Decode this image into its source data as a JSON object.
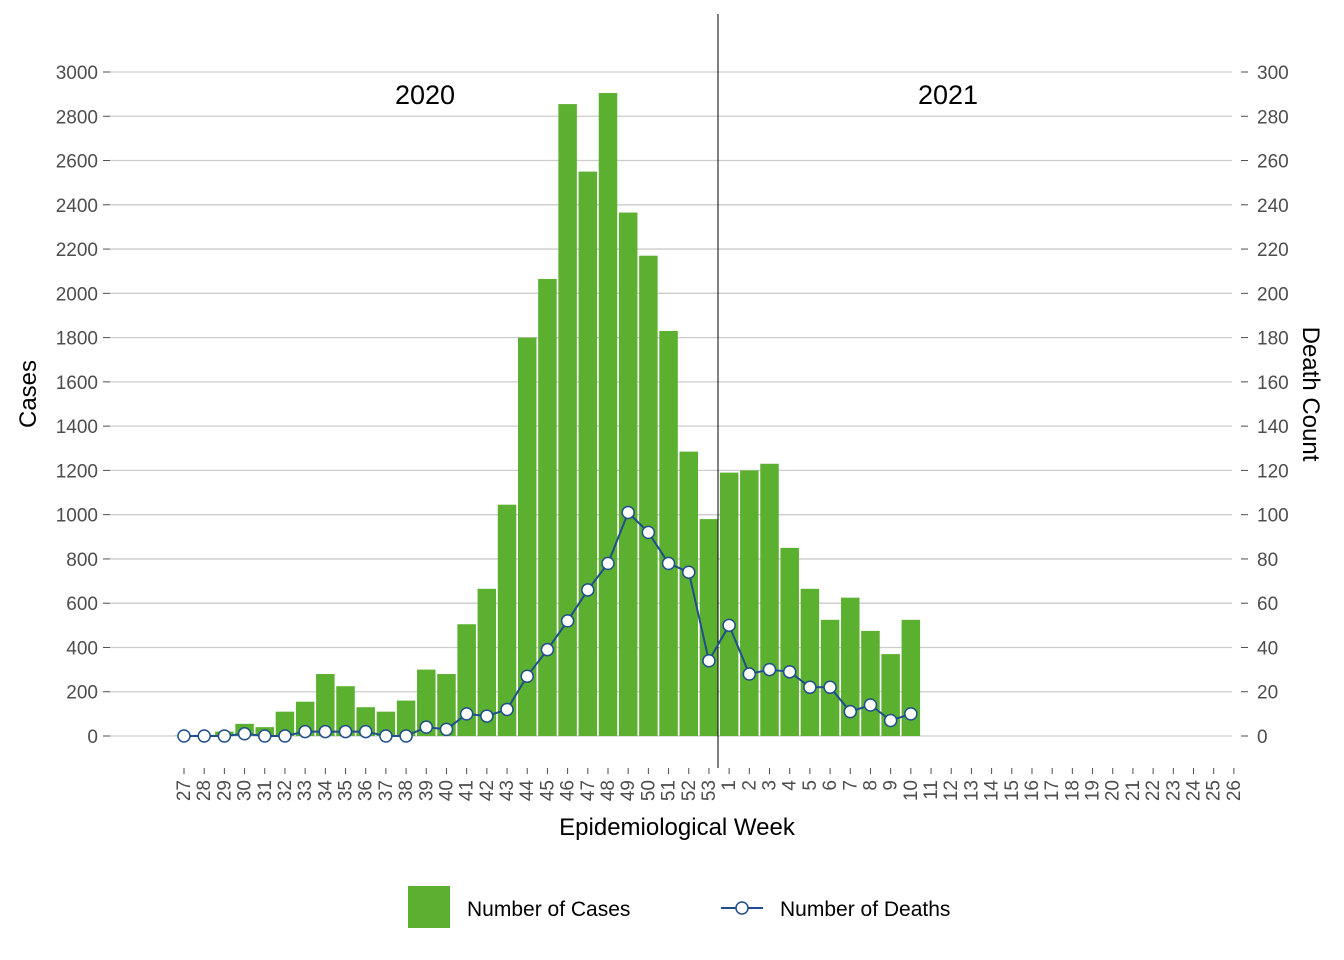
{
  "chart_data": {
    "type": "bar",
    "x_label": "Epidemiological Week",
    "y_label": "Cases",
    "y2_label": "Death Count",
    "ylim": [
      0,
      3000
    ],
    "y2lim": [
      0,
      300
    ],
    "y_ticks": [
      0,
      200,
      400,
      600,
      800,
      1000,
      1200,
      1400,
      1600,
      1800,
      2000,
      2200,
      2400,
      2600,
      2800,
      3000
    ],
    "y2_ticks": [
      0,
      20,
      40,
      60,
      80,
      100,
      120,
      140,
      160,
      180,
      200,
      220,
      240,
      260,
      280,
      300
    ],
    "grid": "horizontal",
    "legend_position": "bottom",
    "year_labels": [
      "2020",
      "2021"
    ],
    "categories": [
      "27",
      "28",
      "29",
      "30",
      "31",
      "32",
      "33",
      "34",
      "35",
      "36",
      "37",
      "38",
      "39",
      "40",
      "41",
      "42",
      "43",
      "44",
      "45",
      "46",
      "47",
      "48",
      "49",
      "50",
      "51",
      "52",
      "53",
      "1",
      "2",
      "3",
      "4",
      "5",
      "6",
      "7",
      "8",
      "9",
      "10",
      "11",
      "12",
      "13",
      "14",
      "15",
      "16",
      "17",
      "18",
      "19",
      "20",
      "21",
      "22",
      "23",
      "24",
      "25",
      "26"
    ],
    "series": [
      {
        "name": "Number of Cases",
        "kind": "bar",
        "axis": "left",
        "color": "#5cb030",
        "values": [
          2,
          5,
          20,
          55,
          40,
          110,
          155,
          280,
          225,
          130,
          110,
          160,
          300,
          280,
          505,
          665,
          1045,
          1800,
          2065,
          2855,
          2550,
          2905,
          2365,
          2170,
          1830,
          1285,
          980,
          1190,
          1200,
          1230,
          850,
          665,
          525,
          625,
          475,
          370,
          525,
          null,
          null,
          null,
          null,
          null,
          null,
          null,
          null,
          null,
          null,
          null,
          null,
          null,
          null,
          null,
          null
        ]
      },
      {
        "name": "Number of Deaths",
        "kind": "line",
        "axis": "right",
        "color": "#1f4e8c",
        "values": [
          0,
          0,
          0,
          1,
          0,
          0,
          2,
          2,
          2,
          2,
          0,
          0,
          4,
          3,
          10,
          9,
          12,
          27,
          39,
          52,
          66,
          78,
          101,
          92,
          78,
          74,
          34,
          50,
          28,
          30,
          29,
          22,
          22,
          11,
          14,
          7,
          10,
          null,
          null,
          null,
          null,
          null,
          null,
          null,
          null,
          null,
          null,
          null,
          null,
          null,
          null,
          null,
          null
        ]
      }
    ]
  }
}
